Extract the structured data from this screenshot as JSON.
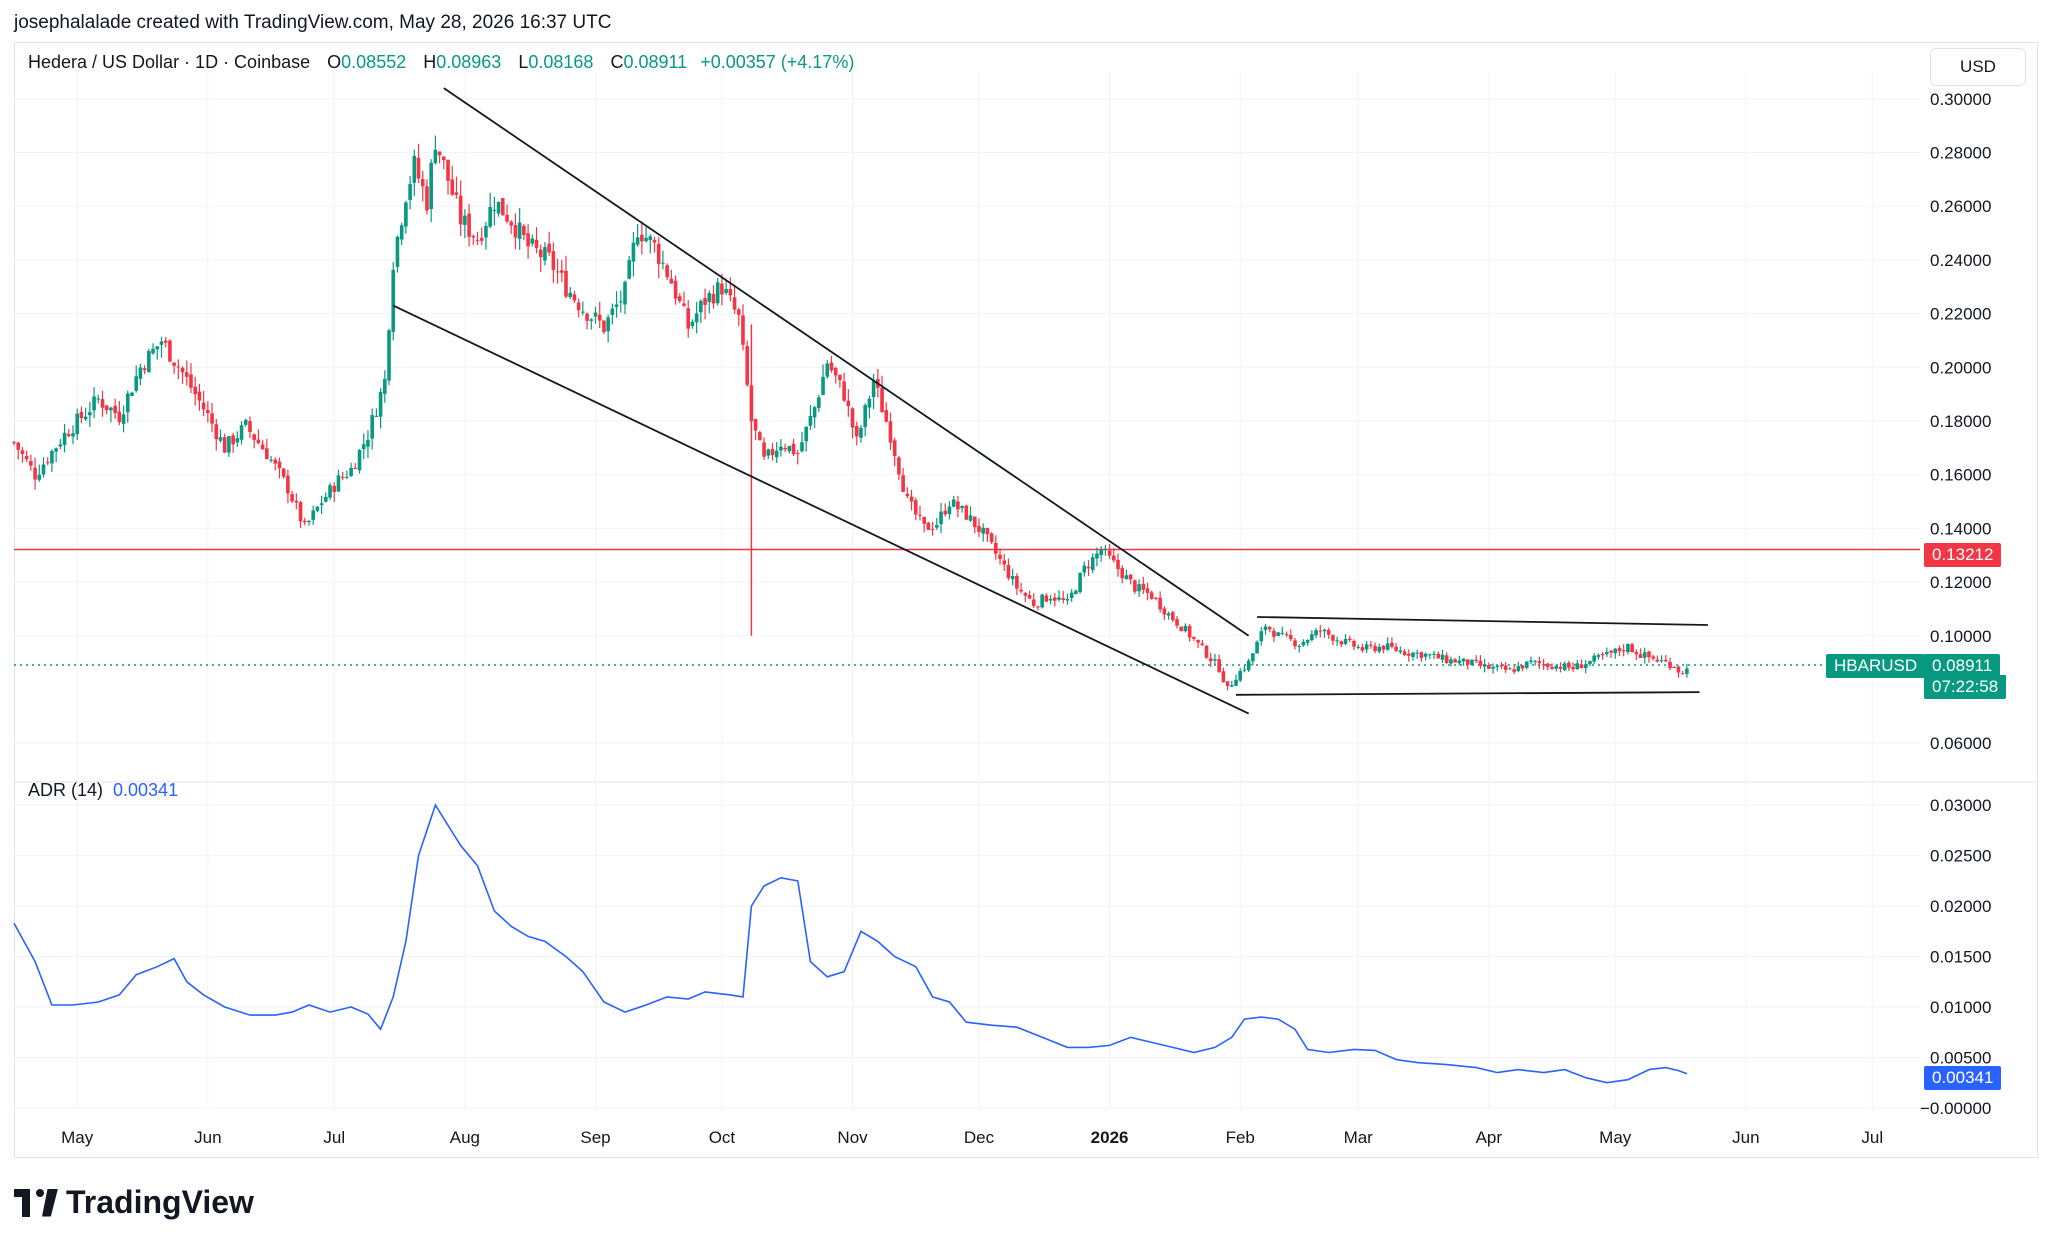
{
  "header": {
    "attribution": "josephalalade created with TradingView.com, May 28, 2026 16:37 UTC"
  },
  "legend": {
    "title": "Hedera / US Dollar · 1D · Coinbase",
    "open_label": "O",
    "open": "0.08552",
    "high_label": "H",
    "high": "0.08963",
    "low_label": "L",
    "low": "0.08168",
    "close_label": "C",
    "close": "0.08911",
    "change": "+0.00357 (+4.17%)"
  },
  "currency_button": "USD",
  "price_tags": {
    "horizontal_line": "0.13212",
    "symbol": "HBARUSD",
    "last_price": "0.08911",
    "countdown": "07:22:58",
    "adr_value": "0.00341"
  },
  "adr_legend": {
    "label": "ADR (14)",
    "value": "0.00341"
  },
  "brand": {
    "name": "TradingView"
  },
  "colors": {
    "up": "#089981",
    "down": "#f23645",
    "adr_line": "#2962ff",
    "hline": "#f23645",
    "grid": "#f0f3fa",
    "trendline": "#131722"
  },
  "chart_data": [
    {
      "type": "candlestick",
      "title": "Hedera / US Dollar · 1D · Coinbase",
      "y_ticks": [
        "0.30000",
        "0.28000",
        "0.26000",
        "0.24000",
        "0.22000",
        "0.20000",
        "0.18000",
        "0.16000",
        "0.14000",
        "0.12000",
        "0.10000",
        "0.06000"
      ],
      "y_tick_values": [
        0.3,
        0.28,
        0.26,
        0.24,
        0.22,
        0.2,
        0.18,
        0.16,
        0.14,
        0.12,
        0.1,
        0.06
      ],
      "ylim": [
        0.05,
        0.31
      ],
      "x_ticks": [
        "May",
        "Jun",
        "Jul",
        "Aug",
        "Sep",
        "Oct",
        "Nov",
        "Dec",
        "2026",
        "Feb",
        "Mar",
        "Apr",
        "May",
        "Jun",
        "Jul"
      ],
      "x_tick_days": [
        15,
        46,
        76,
        107,
        138,
        168,
        199,
        229,
        260,
        291,
        319,
        350,
        380,
        411,
        441
      ],
      "x_range_days": [
        0,
        449
      ],
      "close_path_key_points": [
        [
          0,
          0.172
        ],
        [
          5,
          0.16
        ],
        [
          12,
          0.175
        ],
        [
          20,
          0.188
        ],
        [
          25,
          0.182
        ],
        [
          30,
          0.2
        ],
        [
          35,
          0.21
        ],
        [
          40,
          0.198
        ],
        [
          46,
          0.182
        ],
        [
          50,
          0.17
        ],
        [
          55,
          0.178
        ],
        [
          60,
          0.168
        ],
        [
          65,
          0.155
        ],
        [
          69,
          0.14
        ],
        [
          73,
          0.15
        ],
        [
          77,
          0.158
        ],
        [
          80,
          0.162
        ],
        [
          84,
          0.175
        ],
        [
          88,
          0.195
        ],
        [
          90,
          0.24
        ],
        [
          93,
          0.265
        ],
        [
          95,
          0.275
        ],
        [
          98,
          0.262
        ],
        [
          100,
          0.285
        ],
        [
          103,
          0.27
        ],
        [
          106,
          0.255
        ],
        [
          110,
          0.248
        ],
        [
          114,
          0.262
        ],
        [
          118,
          0.255
        ],
        [
          122,
          0.245
        ],
        [
          127,
          0.24
        ],
        [
          131,
          0.23
        ],
        [
          135,
          0.222
        ],
        [
          140,
          0.215
        ],
        [
          145,
          0.228
        ],
        [
          148,
          0.252
        ],
        [
          152,
          0.245
        ],
        [
          156,
          0.232
        ],
        [
          160,
          0.215
        ],
        [
          164,
          0.225
        ],
        [
          168,
          0.23
        ],
        [
          172,
          0.218
        ],
        [
          175,
          0.18
        ],
        [
          178,
          0.165
        ],
        [
          182,
          0.172
        ],
        [
          186,
          0.168
        ],
        [
          190,
          0.185
        ],
        [
          193,
          0.202
        ],
        [
          197,
          0.19
        ],
        [
          200,
          0.172
        ],
        [
          204,
          0.195
        ],
        [
          208,
          0.175
        ],
        [
          212,
          0.15
        ],
        [
          216,
          0.14
        ],
        [
          219,
          0.142
        ],
        [
          222,
          0.15
        ],
        [
          226,
          0.145
        ],
        [
          230,
          0.138
        ],
        [
          234,
          0.128
        ],
        [
          238,
          0.118
        ],
        [
          242,
          0.112
        ],
        [
          246,
          0.115
        ],
        [
          250,
          0.112
        ],
        [
          254,
          0.125
        ],
        [
          258,
          0.132
        ],
        [
          262,
          0.125
        ],
        [
          266,
          0.118
        ],
        [
          270,
          0.115
        ],
        [
          274,
          0.108
        ],
        [
          278,
          0.102
        ],
        [
          282,
          0.095
        ],
        [
          286,
          0.088
        ],
        [
          288,
          0.08
        ],
        [
          290,
          0.085
        ],
        [
          293,
          0.09
        ],
        [
          297,
          0.104
        ],
        [
          300,
          0.1
        ],
        [
          305,
          0.097
        ],
        [
          310,
          0.102
        ],
        [
          315,
          0.098
        ],
        [
          320,
          0.095
        ],
        [
          325,
          0.096
        ],
        [
          330,
          0.094
        ],
        [
          335,
          0.093
        ],
        [
          340,
          0.091
        ],
        [
          345,
          0.09
        ],
        [
          350,
          0.088
        ],
        [
          355,
          0.087
        ],
        [
          360,
          0.09
        ],
        [
          365,
          0.089
        ],
        [
          370,
          0.088
        ],
        [
          375,
          0.091
        ],
        [
          380,
          0.094
        ],
        [
          383,
          0.096
        ],
        [
          386,
          0.093
        ],
        [
          390,
          0.091
        ],
        [
          394,
          0.089
        ],
        [
          396,
          0.0855
        ],
        [
          397,
          0.0891
        ]
      ],
      "horizontal_line": {
        "value": 0.13212
      },
      "last_price": 0.08911,
      "trendlines": [
        {
          "from": [
            102,
            0.304
          ],
          "to": [
            293,
            0.1
          ]
        },
        {
          "from": [
            90,
            0.223
          ],
          "to": [
            293,
            0.071
          ]
        },
        {
          "from": [
            295,
            0.107
          ],
          "to": [
            402,
            0.104
          ]
        },
        {
          "from": [
            290,
            0.078
          ],
          "to": [
            400,
            0.079
          ]
        }
      ],
      "vertical_spike": {
        "day": 175,
        "high": 0.216,
        "low": 0.1
      }
    },
    {
      "type": "line",
      "title": "ADR (14)",
      "y_ticks": [
        "0.03000",
        "0.02500",
        "0.02000",
        "0.01500",
        "0.01000",
        "0.00500",
        "−0.00000"
      ],
      "y_tick_values": [
        0.03,
        0.025,
        0.02,
        0.015,
        0.01,
        0.005,
        0.0
      ],
      "ylim": [
        -0.0002,
        0.0315
      ],
      "series": [
        {
          "values_by_day": [
            [
              0,
              0.0183
            ],
            [
              5,
              0.0145
            ],
            [
              9,
              0.0102
            ],
            [
              14,
              0.0102
            ],
            [
              20,
              0.0105
            ],
            [
              25,
              0.0112
            ],
            [
              29,
              0.0132
            ],
            [
              34,
              0.014
            ],
            [
              38,
              0.0148
            ],
            [
              41,
              0.0125
            ],
            [
              45,
              0.0112
            ],
            [
              50,
              0.01
            ],
            [
              56,
              0.0092
            ],
            [
              62,
              0.0092
            ],
            [
              66,
              0.0095
            ],
            [
              70,
              0.0102
            ],
            [
              75,
              0.0095
            ],
            [
              80,
              0.01
            ],
            [
              84,
              0.0093
            ],
            [
              87,
              0.0078
            ],
            [
              90,
              0.011
            ],
            [
              93,
              0.0165
            ],
            [
              96,
              0.025
            ],
            [
              100,
              0.03
            ],
            [
              103,
              0.028
            ],
            [
              106,
              0.026
            ],
            [
              110,
              0.024
            ],
            [
              114,
              0.0195
            ],
            [
              118,
              0.018
            ],
            [
              122,
              0.017
            ],
            [
              126,
              0.0165
            ],
            [
              131,
              0.015
            ],
            [
              135,
              0.0135
            ],
            [
              140,
              0.0105
            ],
            [
              145,
              0.0095
            ],
            [
              150,
              0.0102
            ],
            [
              155,
              0.011
            ],
            [
              160,
              0.0108
            ],
            [
              164,
              0.0115
            ],
            [
              170,
              0.0112
            ],
            [
              173,
              0.011
            ],
            [
              175,
              0.02
            ],
            [
              178,
              0.022
            ],
            [
              182,
              0.0228
            ],
            [
              186,
              0.0225
            ],
            [
              189,
              0.0145
            ],
            [
              193,
              0.013
            ],
            [
              197,
              0.0135
            ],
            [
              201,
              0.0175
            ],
            [
              205,
              0.0165
            ],
            [
              209,
              0.015
            ],
            [
              214,
              0.014
            ],
            [
              218,
              0.011
            ],
            [
              222,
              0.0105
            ],
            [
              226,
              0.0085
            ],
            [
              232,
              0.0082
            ],
            [
              238,
              0.008
            ],
            [
              244,
              0.007
            ],
            [
              250,
              0.006
            ],
            [
              255,
              0.006
            ],
            [
              260,
              0.0062
            ],
            [
              265,
              0.007
            ],
            [
              270,
              0.0065
            ],
            [
              275,
              0.006
            ],
            [
              280,
              0.0055
            ],
            [
              285,
              0.006
            ],
            [
              289,
              0.007
            ],
            [
              292,
              0.0088
            ],
            [
              296,
              0.009
            ],
            [
              300,
              0.0088
            ],
            [
              304,
              0.0078
            ],
            [
              307,
              0.0058
            ],
            [
              312,
              0.0055
            ],
            [
              318,
              0.0058
            ],
            [
              323,
              0.0057
            ],
            [
              328,
              0.0048
            ],
            [
              333,
              0.0045
            ],
            [
              340,
              0.0043
            ],
            [
              347,
              0.004
            ],
            [
              352,
              0.0035
            ],
            [
              357,
              0.0038
            ],
            [
              363,
              0.0035
            ],
            [
              368,
              0.0038
            ],
            [
              373,
              0.003
            ],
            [
              378,
              0.0025
            ],
            [
              383,
              0.0028
            ],
            [
              388,
              0.0038
            ],
            [
              392,
              0.004
            ],
            [
              395,
              0.0037
            ],
            [
              397,
              0.0034
            ]
          ]
        }
      ]
    }
  ]
}
